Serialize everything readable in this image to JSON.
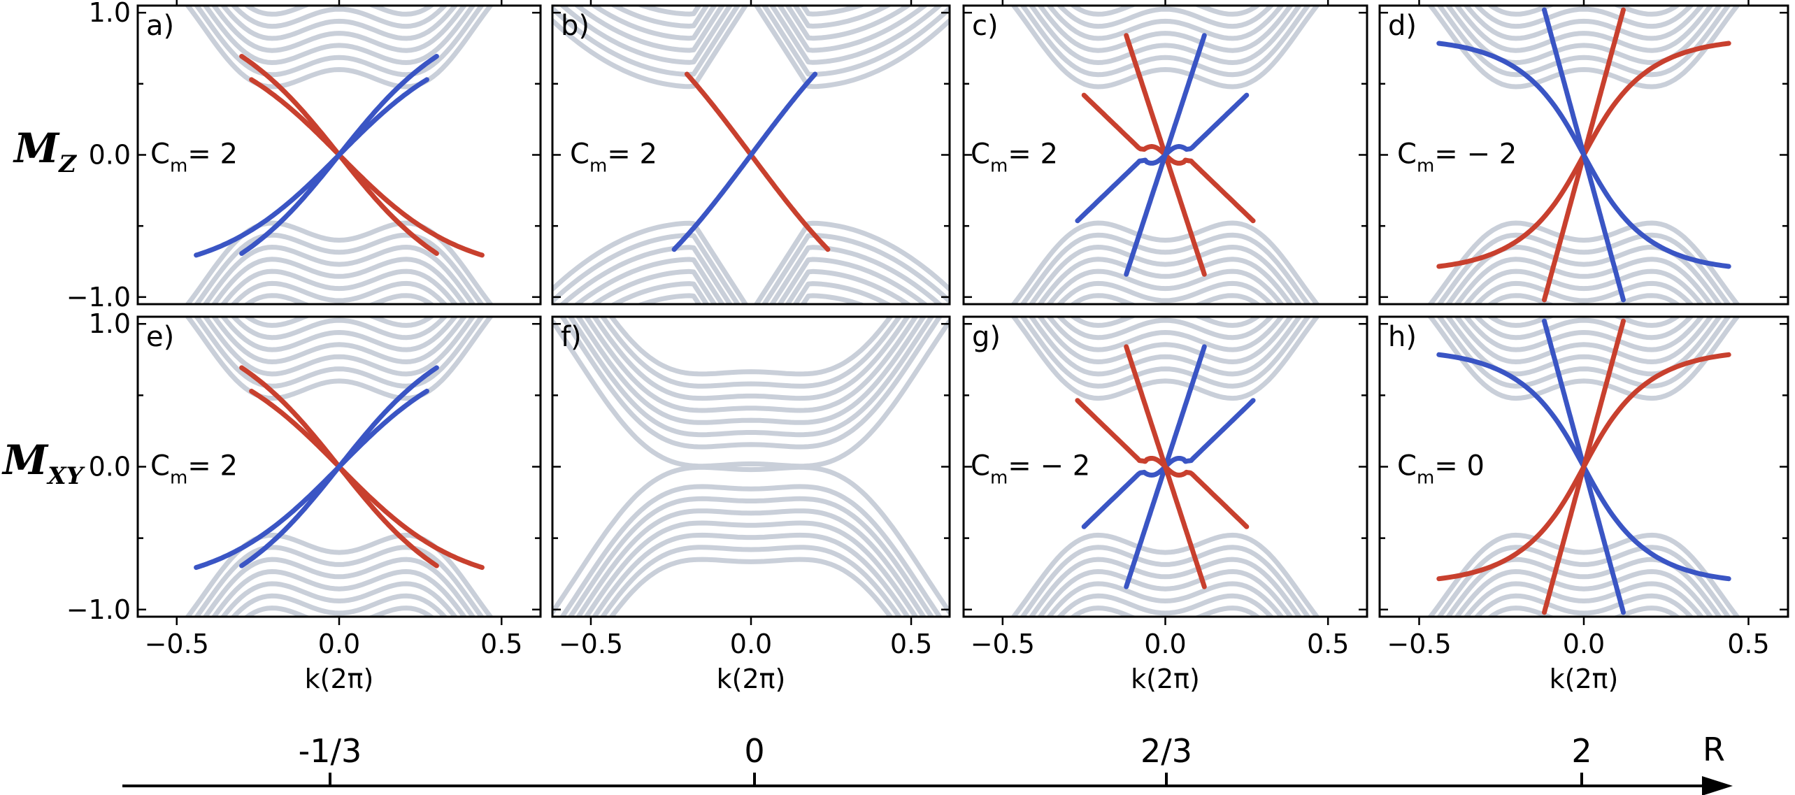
{
  "chart_data": {
    "type": "line",
    "description_kind": "band structure panels",
    "xlabel": "k(2π)",
    "xlim": [
      -0.62,
      0.62
    ],
    "ylim": [
      -1.05,
      1.05
    ],
    "xticks": [
      -0.5,
      0.0,
      0.5
    ],
    "xtick_labels": [
      "−0.5",
      "0.0",
      "0.5"
    ],
    "yticks": [
      -1.0,
      0.0,
      1.0
    ],
    "ytick_labels": [
      "−1.0",
      "0.0",
      "1.0"
    ],
    "row_labels": [
      {
        "main": "M",
        "sub": "Z"
      },
      {
        "main": "M",
        "sub": "XY"
      }
    ],
    "colors": {
      "red": "#c8402e",
      "blue": "#3a55c4",
      "grey": "#c9cfd9",
      "lightblue": "#8fb0ea",
      "lightred": "#eb9a7c"
    },
    "panels": [
      {
        "label": "a)",
        "chern": "= 2",
        "kind": "cross_sym"
      },
      {
        "label": "b)",
        "chern": "= 2",
        "kind": "cross_single"
      },
      {
        "label": "c)",
        "chern": "= 2",
        "kind": "cross_triple"
      },
      {
        "label": "d)",
        "chern": "= − 2",
        "kind": "cross_steep"
      },
      {
        "label": "e)",
        "chern": "= 2",
        "kind": "cross_sym"
      },
      {
        "label": "f)",
        "chern": "",
        "kind": "gapped"
      },
      {
        "label": "g)",
        "chern": "= − 2",
        "kind": "cross_triple_inv"
      },
      {
        "label": "h)",
        "chern": "= 0",
        "kind": "cross_steep_inv"
      }
    ],
    "r_axis": {
      "label": "R",
      "ticks": [
        "-1/3",
        "0",
        "2/3",
        "2"
      ]
    }
  }
}
